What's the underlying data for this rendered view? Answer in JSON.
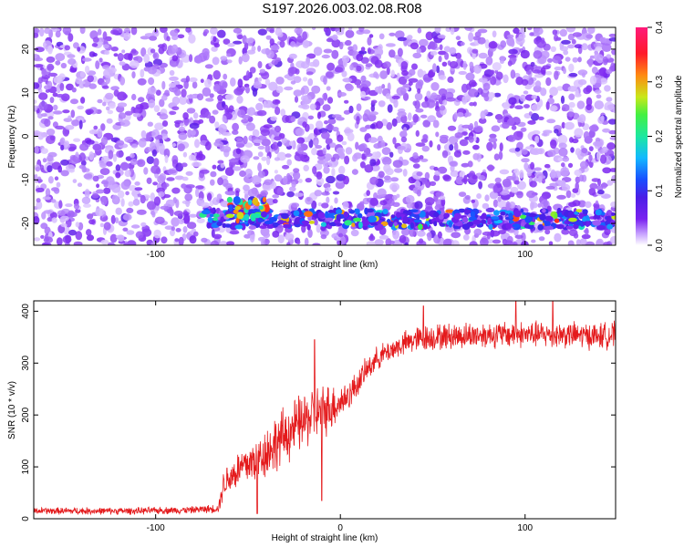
{
  "title": "S197.2026.003.02.08.R08",
  "colors": {
    "snr_line": "#e41a1c",
    "spec_background": "#ffffff",
    "spec_scale": [
      "#ffffff",
      "#c9a6ff",
      "#7a22f0",
      "#4b1ee6",
      "#1a4dff",
      "#12b8ff",
      "#1ce8a0",
      "#44f040",
      "#c8e81a",
      "#ff8a12",
      "#ff1a2a",
      "#ff1a7a"
    ]
  },
  "chart_data": [
    {
      "type": "heatmap",
      "title": "",
      "xlabel": "Height of straight line (km)",
      "ylabel": "Frequency (Hz)",
      "xlim": [
        -166,
        149
      ],
      "ylim": [
        -25,
        25
      ],
      "x_ticks": [
        -100,
        0,
        100
      ],
      "y_ticks": [
        20,
        10,
        0,
        -10,
        -20
      ],
      "colorbar": {
        "label": "Normalized spectral amplitude",
        "range": [
          0.0,
          0.4
        ],
        "ticks": [
          0.0,
          0.1,
          0.2,
          0.3,
          0.4
        ]
      },
      "features": [
        {
          "description": "persistent narrowband line",
          "frequency_hz": -19,
          "x_range_km": [
            -75,
            149
          ],
          "peak_amplitude": 0.35
        },
        {
          "description": "strong patch",
          "frequency_hz": -17,
          "x_range_km": [
            -60,
            -40
          ],
          "peak_amplitude": 0.35
        },
        {
          "description": "background speckle",
          "frequency_range_hz": [
            -25,
            25
          ],
          "typical_amplitude": 0.03
        }
      ]
    },
    {
      "type": "line",
      "title": "",
      "xlabel": "Height of straight line (km)",
      "ylabel": "SNR (10 * v/v)",
      "xlim": [
        -166,
        149
      ],
      "ylim": [
        0,
        420
      ],
      "x_ticks": [
        -100,
        0,
        100
      ],
      "y_ticks": [
        0,
        100,
        200,
        300,
        400
      ],
      "series": [
        {
          "x": [
            -166,
            -140,
            -110,
            -80,
            -66,
            -63,
            -55,
            -45,
            -35,
            -25,
            -15,
            -5,
            0,
            5,
            10,
            15,
            20,
            25,
            30,
            40,
            50,
            60,
            80,
            100,
            120,
            140,
            149
          ],
          "values": [
            15,
            15,
            15,
            17,
            20,
            70,
            95,
            115,
            145,
            175,
            200,
            215,
            225,
            240,
            265,
            290,
            310,
            320,
            330,
            345,
            350,
            352,
            355,
            355,
            355,
            352,
            355
          ],
          "noise_amplitude": [
            8,
            8,
            8,
            8,
            10,
            35,
            45,
            55,
            65,
            65,
            65,
            55,
            40,
            35,
            30,
            28,
            26,
            26,
            26,
            30,
            30,
            30,
            30,
            30,
            30,
            30,
            30
          ],
          "spikes": [
            [
              -45,
              10
            ],
            [
              -14,
              345
            ],
            [
              -10,
              35
            ],
            [
              45,
              410
            ],
            [
              95,
              420
            ],
            [
              115,
              420
            ]
          ]
        }
      ]
    }
  ]
}
